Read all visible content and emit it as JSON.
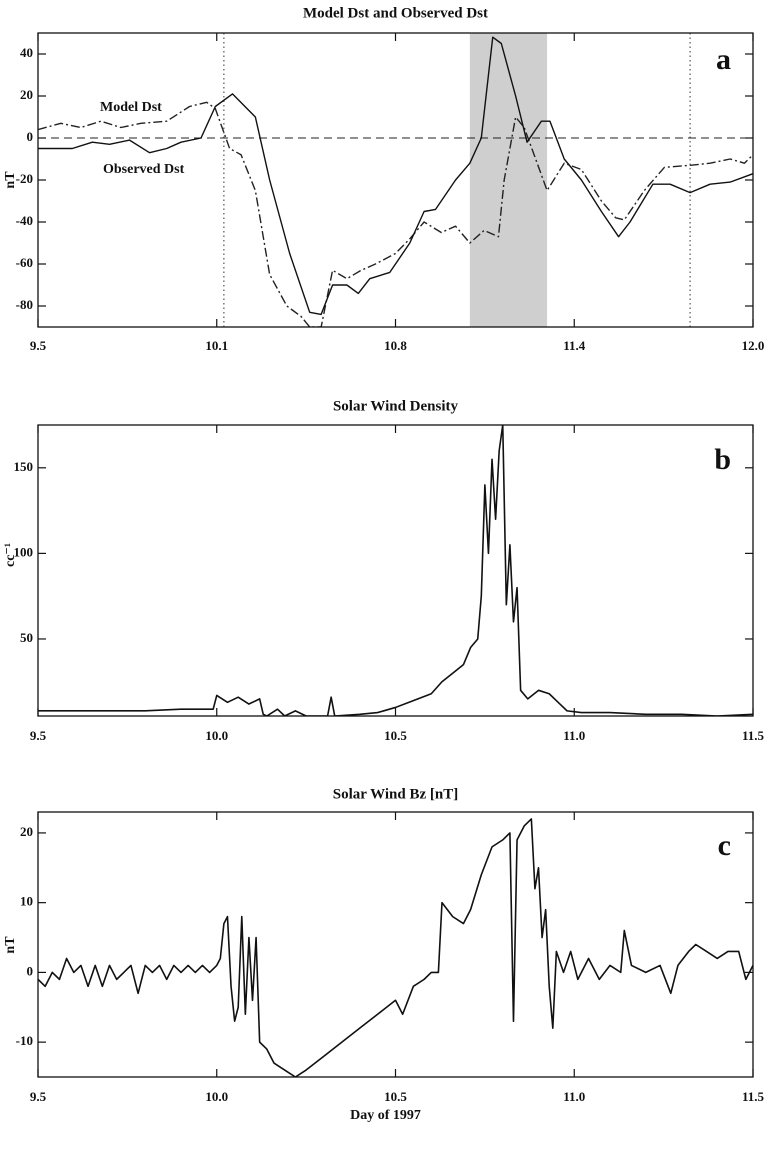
{
  "chart_data": [
    {
      "type": "line",
      "title": "Model Dst and Observed Dst",
      "ylabel": "nT",
      "label": "a",
      "xlim": [
        9.5,
        12.0
      ],
      "xticks": [
        9.5,
        {
          "value": 10.125,
          "label": "10.1"
        },
        {
          "value": 10.75,
          "label": "10.8"
        },
        {
          "value": 11.375,
          "label": "11.4"
        },
        {
          "value": 12.0,
          "label": "12.0"
        }
      ],
      "ylim": [
        -90,
        50
      ],
      "yticks": [
        -80,
        -60,
        -40,
        -20,
        0,
        20,
        40
      ],
      "vlines": [
        10.15,
        11.78
      ],
      "shade": [
        11.01,
        11.28
      ],
      "hline": 0,
      "series": [
        {
          "name": "Model Dst",
          "color": "#222222",
          "style": "dashdot",
          "x": [
            9.5,
            9.58,
            9.65,
            9.72,
            9.79,
            9.86,
            9.95,
            10.03,
            10.09,
            10.12,
            10.17,
            10.21,
            10.26,
            10.31,
            10.37,
            10.42,
            10.45,
            10.49,
            10.53,
            10.58,
            10.63,
            10.68,
            10.75,
            10.8,
            10.85,
            10.91,
            10.96,
            11.01,
            11.06,
            11.11,
            11.13,
            11.17,
            11.2,
            11.24,
            11.28,
            11.34,
            11.4,
            11.47,
            11.52,
            11.55,
            11.62,
            11.69,
            11.78,
            11.85,
            11.92,
            11.97,
            12.0
          ],
          "values": [
            4,
            7,
            5,
            8,
            5,
            7,
            8,
            15,
            17,
            14,
            -5,
            -8,
            -25,
            -65,
            -80,
            -85,
            -90,
            -90,
            -63,
            -67,
            -63,
            -60,
            -55,
            -48,
            -40,
            -45,
            -42,
            -50,
            -44,
            -47,
            -20,
            10,
            5,
            -10,
            -25,
            -12,
            -15,
            -30,
            -38,
            -39,
            -25,
            -14,
            -13,
            -12,
            -10,
            -12,
            -8
          ]
        },
        {
          "name": "Observed Dst",
          "color": "#111111",
          "style": "solid",
          "x": [
            9.5,
            9.62,
            9.69,
            9.75,
            9.82,
            9.89,
            9.95,
            10.0,
            10.07,
            10.12,
            10.18,
            10.26,
            10.31,
            10.38,
            10.45,
            10.49,
            10.53,
            10.58,
            10.62,
            10.66,
            10.73,
            10.8,
            10.85,
            10.89,
            10.96,
            11.01,
            11.05,
            11.09,
            11.12,
            11.17,
            11.21,
            11.26,
            11.29,
            11.34,
            11.4,
            11.47,
            11.53,
            11.57,
            11.65,
            11.71,
            11.78,
            11.85,
            11.92,
            12.0
          ],
          "values": [
            -5,
            -5,
            -2,
            -3,
            -1,
            -7,
            -5,
            -2,
            0,
            15,
            21,
            10,
            -20,
            -55,
            -83,
            -84,
            -70,
            -70,
            -74,
            -67,
            -64,
            -50,
            -35,
            -34,
            -20,
            -12,
            0,
            48,
            45,
            20,
            -2,
            8,
            8,
            -10,
            -20,
            -35,
            -47,
            -40,
            -22,
            -22,
            -26,
            -22,
            -21,
            -17
          ]
        }
      ]
    },
    {
      "type": "line",
      "title": "Solar Wind Density",
      "ylabel": "cc⁻¹",
      "label": "b",
      "xlim": [
        9.5,
        11.5
      ],
      "xticks": [
        9.5,
        {
          "value": 10.0,
          "label": "10.0"
        },
        10.5,
        {
          "value": 11.0,
          "label": "11.0"
        },
        11.5
      ],
      "ylim": [
        5,
        175
      ],
      "yticks": [
        50,
        100,
        150
      ],
      "series": [
        {
          "color": "#111111",
          "style": "solid",
          "x": [
            9.5,
            9.6,
            9.7,
            9.8,
            9.9,
            9.99,
            10.0,
            10.03,
            10.06,
            10.09,
            10.12,
            10.13,
            10.14,
            10.17,
            10.19,
            10.22,
            10.25,
            10.31,
            10.32,
            10.33,
            10.4,
            10.45,
            10.5,
            10.55,
            10.6,
            10.63,
            10.66,
            10.69,
            10.71,
            10.73,
            10.74,
            10.75,
            10.76,
            10.77,
            10.78,
            10.79,
            10.8,
            10.81,
            10.82,
            10.83,
            10.84,
            10.85,
            10.87,
            10.9,
            10.93,
            10.96,
            10.98,
            11.02,
            11.1,
            11.2,
            11.3,
            11.4,
            11.5
          ],
          "values": [
            8,
            8,
            8,
            8,
            9,
            9,
            17,
            13,
            16,
            12,
            15,
            6,
            5,
            9,
            5,
            8,
            5,
            5,
            16,
            5,
            6,
            7,
            10,
            14,
            18,
            25,
            30,
            35,
            45,
            50,
            75,
            140,
            100,
            155,
            120,
            160,
            175,
            70,
            105,
            60,
            80,
            20,
            15,
            20,
            18,
            12,
            8,
            7,
            7,
            6,
            6,
            5,
            6
          ]
        }
      ]
    },
    {
      "type": "line",
      "title": "Solar Wind Bz [nT]",
      "ylabel": "nT",
      "xlabel": "Day of 1997",
      "label": "c",
      "xlim": [
        9.5,
        11.5
      ],
      "xticks": [
        9.5,
        {
          "value": 10.0,
          "label": "10.0"
        },
        10.5,
        {
          "value": 11.0,
          "label": "11.0"
        },
        11.5
      ],
      "ylim": [
        -15,
        23
      ],
      "yticks": [
        -10,
        0,
        10,
        20
      ],
      "series": [
        {
          "color": "#111111",
          "style": "solid",
          "x": [
            9.5,
            9.52,
            9.54,
            9.56,
            9.58,
            9.6,
            9.62,
            9.64,
            9.66,
            9.68,
            9.7,
            9.72,
            9.74,
            9.76,
            9.78,
            9.8,
            9.82,
            9.84,
            9.86,
            9.88,
            9.9,
            9.92,
            9.94,
            9.96,
            9.98,
            10.0,
            10.01,
            10.02,
            10.03,
            10.04,
            10.05,
            10.06,
            10.07,
            10.08,
            10.09,
            10.1,
            10.11,
            10.12,
            10.14,
            10.16,
            10.19,
            10.22,
            10.25,
            10.3,
            10.35,
            10.4,
            10.45,
            10.5,
            10.52,
            10.55,
            10.58,
            10.6,
            10.62,
            10.63,
            10.66,
            10.69,
            10.71,
            10.74,
            10.77,
            10.8,
            10.82,
            10.83,
            10.84,
            10.86,
            10.88,
            10.89,
            10.9,
            10.91,
            10.92,
            10.93,
            10.94,
            10.95,
            10.97,
            10.99,
            11.01,
            11.04,
            11.07,
            11.1,
            11.13,
            11.14,
            11.16,
            11.2,
            11.24,
            11.27,
            11.29,
            11.32,
            11.34,
            11.37,
            11.4,
            11.43,
            11.46,
            11.48,
            11.5
          ],
          "values": [
            -1,
            -2,
            0,
            -1,
            2,
            0,
            1,
            -2,
            1,
            -2,
            1,
            -1,
            0,
            1,
            -3,
            1,
            0,
            1,
            -1,
            1,
            0,
            1,
            0,
            1,
            0,
            1,
            2,
            7,
            8,
            -2,
            -7,
            -5,
            8,
            -6,
            5,
            -4,
            5,
            -10,
            -11,
            -13,
            -14,
            -15,
            -14,
            -12,
            -10,
            -8,
            -6,
            -4,
            -6,
            -2,
            -1,
            0,
            0,
            10,
            8,
            7,
            9,
            14,
            18,
            19,
            20,
            -7,
            19,
            21,
            22,
            12,
            15,
            5,
            9,
            -2,
            -8,
            3,
            0,
            3,
            -1,
            2,
            -1,
            1,
            0,
            6,
            1,
            0,
            1,
            -3,
            1,
            3,
            4,
            3,
            2,
            3,
            3,
            -1,
            1
          ]
        }
      ]
    }
  ]
}
